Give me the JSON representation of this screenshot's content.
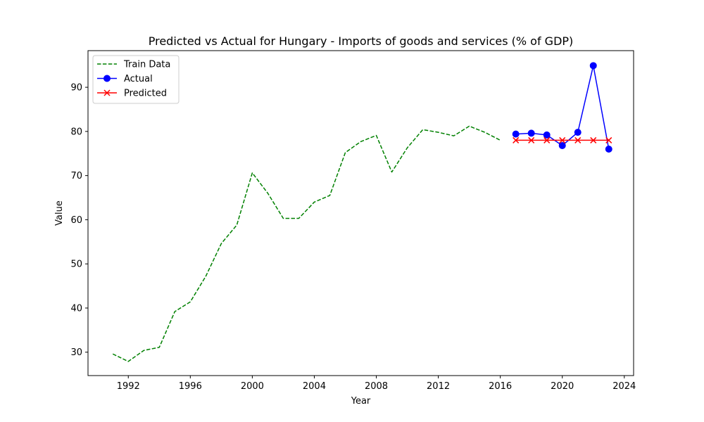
{
  "chart_data": {
    "type": "line",
    "title": "Predicted vs Actual for Hungary - Imports of goods and services (% of GDP)",
    "xlabel": "Year",
    "ylabel": "Value",
    "xlim": [
      1989.4,
      2024.6
    ],
    "ylim": [
      24.7,
      98.3
    ],
    "xticks": [
      1992,
      1996,
      2000,
      2004,
      2008,
      2012,
      2016,
      2020,
      2024
    ],
    "yticks": [
      30,
      40,
      50,
      60,
      70,
      80,
      90
    ],
    "grid": false,
    "legend_position": "top-left",
    "series": [
      {
        "name": "Train Data",
        "color": "#008000",
        "style": "dashed",
        "marker": "none",
        "x": [
          1991,
          1992,
          1993,
          1994,
          1995,
          1996,
          1997,
          1998,
          1999,
          2000,
          2001,
          2002,
          2003,
          2004,
          2005,
          2006,
          2007,
          2008,
          2009,
          2010,
          2011,
          2012,
          2013,
          2014,
          2015,
          2016
        ],
        "y": [
          29.6,
          27.9,
          30.4,
          31.1,
          39.2,
          41.4,
          47.2,
          54.6,
          58.8,
          70.6,
          66.0,
          60.3,
          60.3,
          64.0,
          65.5,
          75.2,
          77.7,
          79.1,
          70.8,
          76.3,
          80.4,
          79.8,
          79.0,
          81.2,
          79.8,
          78.0
        ]
      },
      {
        "name": "Actual",
        "color": "#0000ff",
        "style": "solid",
        "marker": "circle",
        "x": [
          2017,
          2018,
          2019,
          2020,
          2021,
          2022,
          2023
        ],
        "y": [
          79.4,
          79.6,
          79.2,
          76.8,
          79.8,
          94.9,
          76.0
        ]
      },
      {
        "name": "Predicted",
        "color": "#ff0000",
        "style": "solid",
        "marker": "x",
        "x": [
          2017,
          2018,
          2019,
          2020,
          2021,
          2022,
          2023
        ],
        "y": [
          78.0,
          78.0,
          78.0,
          78.0,
          78.0,
          78.0,
          78.0
        ]
      }
    ]
  }
}
